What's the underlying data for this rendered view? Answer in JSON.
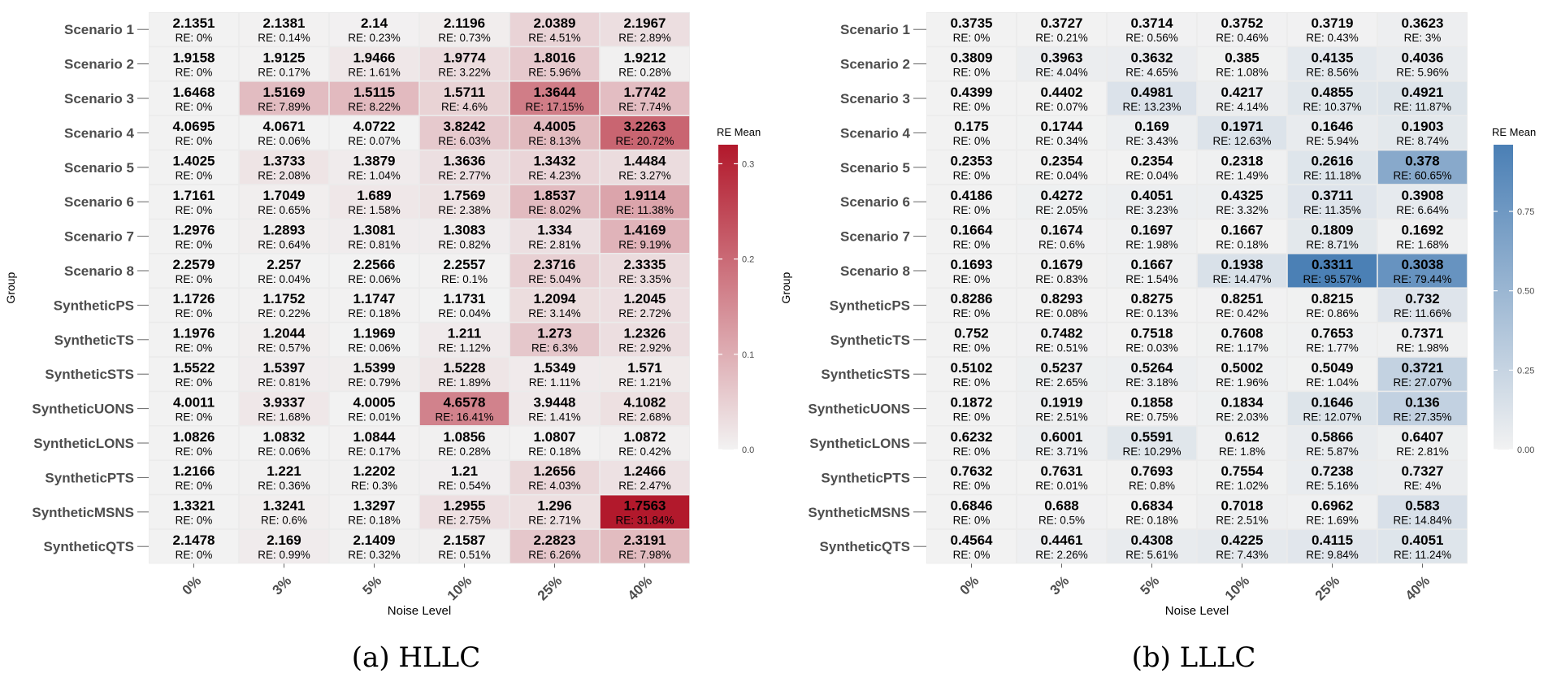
{
  "chart_data": [
    {
      "type": "heatmap",
      "caption": "(a) HLLC",
      "xlabel": "Noise Level",
      "ylabel": "Group",
      "x_categories": [
        "0%",
        "3%",
        "5%",
        "10%",
        "25%",
        "40%"
      ],
      "y_categories": [
        "Scenario 1",
        "Scenario 2",
        "Scenario 3",
        "Scenario 4",
        "Scenario 5",
        "Scenario 6",
        "Scenario 7",
        "Scenario 8",
        "SyntheticPS",
        "SyntheticTS",
        "SyntheticSTS",
        "SyntheticUONS",
        "SyntheticLONS",
        "SyntheticPTS",
        "SyntheticMSNS",
        "SyntheticQTS"
      ],
      "values": [
        [
          "2.1351",
          "2.1381",
          "2.14",
          "2.1196",
          "2.0389",
          "2.1967"
        ],
        [
          "1.9158",
          "1.9125",
          "1.9466",
          "1.9774",
          "1.8016",
          "1.9212"
        ],
        [
          "1.6468",
          "1.5169",
          "1.5115",
          "1.5711",
          "1.3644",
          "1.7742"
        ],
        [
          "4.0695",
          "4.0671",
          "4.0722",
          "3.8242",
          "4.4005",
          "3.2263"
        ],
        [
          "1.4025",
          "1.3733",
          "1.3879",
          "1.3636",
          "1.3432",
          "1.4484"
        ],
        [
          "1.7161",
          "1.7049",
          "1.689",
          "1.7569",
          "1.8537",
          "1.9114"
        ],
        [
          "1.2976",
          "1.2893",
          "1.3081",
          "1.3083",
          "1.334",
          "1.4169"
        ],
        [
          "2.2579",
          "2.257",
          "2.2566",
          "2.2557",
          "2.3716",
          "2.3335"
        ],
        [
          "1.1726",
          "1.1752",
          "1.1747",
          "1.1731",
          "1.2094",
          "1.2045"
        ],
        [
          "1.1976",
          "1.2044",
          "1.1969",
          "1.211",
          "1.273",
          "1.2326"
        ],
        [
          "1.5522",
          "1.5397",
          "1.5399",
          "1.5228",
          "1.5349",
          "1.571"
        ],
        [
          "4.0011",
          "3.9337",
          "4.0005",
          "4.6578",
          "3.9448",
          "4.1082"
        ],
        [
          "1.0826",
          "1.0832",
          "1.0844",
          "1.0856",
          "1.0807",
          "1.0872"
        ],
        [
          "1.2166",
          "1.221",
          "1.2202",
          "1.21",
          "1.2656",
          "1.2466"
        ],
        [
          "1.3321",
          "1.3241",
          "1.3297",
          "1.2955",
          "1.296",
          "1.7563"
        ],
        [
          "2.1478",
          "2.169",
          "2.1409",
          "2.1587",
          "2.2823",
          "2.3191"
        ]
      ],
      "re_labels": [
        [
          "RE: 0%",
          "RE: 0.14%",
          "RE: 0.23%",
          "RE: 0.73%",
          "RE: 4.51%",
          "RE: 2.89%"
        ],
        [
          "RE: 0%",
          "RE: 0.17%",
          "RE: 1.61%",
          "RE: 3.22%",
          "RE: 5.96%",
          "RE: 0.28%"
        ],
        [
          "RE: 0%",
          "RE: 7.89%",
          "RE: 8.22%",
          "RE: 4.6%",
          "RE: 17.15%",
          "RE: 7.74%"
        ],
        [
          "RE: 0%",
          "RE: 0.06%",
          "RE: 0.07%",
          "RE: 6.03%",
          "RE: 8.13%",
          "RE: 20.72%"
        ],
        [
          "RE: 0%",
          "RE: 2.08%",
          "RE: 1.04%",
          "RE: 2.77%",
          "RE: 4.23%",
          "RE: 3.27%"
        ],
        [
          "RE: 0%",
          "RE: 0.65%",
          "RE: 1.58%",
          "RE: 2.38%",
          "RE: 8.02%",
          "RE: 11.38%"
        ],
        [
          "RE: 0%",
          "RE: 0.64%",
          "RE: 0.81%",
          "RE: 0.82%",
          "RE: 2.81%",
          "RE: 9.19%"
        ],
        [
          "RE: 0%",
          "RE: 0.04%",
          "RE: 0.06%",
          "RE: 0.1%",
          "RE: 5.04%",
          "RE: 3.35%"
        ],
        [
          "RE: 0%",
          "RE: 0.22%",
          "RE: 0.18%",
          "RE: 0.04%",
          "RE: 3.14%",
          "RE: 2.72%"
        ],
        [
          "RE: 0%",
          "RE: 0.57%",
          "RE: 0.06%",
          "RE: 1.12%",
          "RE: 6.3%",
          "RE: 2.92%"
        ],
        [
          "RE: 0%",
          "RE: 0.81%",
          "RE: 0.79%",
          "RE: 1.89%",
          "RE: 1.11%",
          "RE: 1.21%"
        ],
        [
          "RE: 0%",
          "RE: 1.68%",
          "RE: 0.01%",
          "RE: 16.41%",
          "RE: 1.41%",
          "RE: 2.68%"
        ],
        [
          "RE: 0%",
          "RE: 0.06%",
          "RE: 0.17%",
          "RE: 0.28%",
          "RE: 0.18%",
          "RE: 0.42%"
        ],
        [
          "RE: 0%",
          "RE: 0.36%",
          "RE: 0.3%",
          "RE: 0.54%",
          "RE: 4.03%",
          "RE: 2.47%"
        ],
        [
          "RE: 0%",
          "RE: 0.6%",
          "RE: 0.18%",
          "RE: 2.75%",
          "RE: 2.71%",
          "RE: 31.84%"
        ],
        [
          "RE: 0%",
          "RE: 0.99%",
          "RE: 0.32%",
          "RE: 0.51%",
          "RE: 6.26%",
          "RE: 7.98%"
        ]
      ],
      "legend": {
        "title": "RE Mean",
        "range": [
          0,
          0.32
        ],
        "ticks": [
          "0.0",
          "0.1",
          "0.2",
          "0.3"
        ],
        "tick_values": [
          0,
          0.1,
          0.2,
          0.3
        ],
        "low_color": "#f2f2f2",
        "high_color": "#b2182b"
      }
    },
    {
      "type": "heatmap",
      "caption": "(b) LLLC",
      "xlabel": "Noise Level",
      "ylabel": "Group",
      "x_categories": [
        "0%",
        "3%",
        "5%",
        "10%",
        "25%",
        "40%"
      ],
      "y_categories": [
        "Scenario 1",
        "Scenario 2",
        "Scenario 3",
        "Scenario 4",
        "Scenario 5",
        "Scenario 6",
        "Scenario 7",
        "Scenario 8",
        "SyntheticPS",
        "SyntheticTS",
        "SyntheticSTS",
        "SyntheticUONS",
        "SyntheticLONS",
        "SyntheticPTS",
        "SyntheticMSNS",
        "SyntheticQTS"
      ],
      "values": [
        [
          "0.3735",
          "0.3727",
          "0.3714",
          "0.3752",
          "0.3719",
          "0.3623"
        ],
        [
          "0.3809",
          "0.3963",
          "0.3632",
          "0.385",
          "0.4135",
          "0.4036"
        ],
        [
          "0.4399",
          "0.4402",
          "0.4981",
          "0.4217",
          "0.4855",
          "0.4921"
        ],
        [
          "0.175",
          "0.1744",
          "0.169",
          "0.1971",
          "0.1646",
          "0.1903"
        ],
        [
          "0.2353",
          "0.2354",
          "0.2354",
          "0.2318",
          "0.2616",
          "0.378"
        ],
        [
          "0.4186",
          "0.4272",
          "0.4051",
          "0.4325",
          "0.3711",
          "0.3908"
        ],
        [
          "0.1664",
          "0.1674",
          "0.1697",
          "0.1667",
          "0.1809",
          "0.1692"
        ],
        [
          "0.1693",
          "0.1679",
          "0.1667",
          "0.1938",
          "0.3311",
          "0.3038"
        ],
        [
          "0.8286",
          "0.8293",
          "0.8275",
          "0.8251",
          "0.8215",
          "0.732"
        ],
        [
          "0.752",
          "0.7482",
          "0.7518",
          "0.7608",
          "0.7653",
          "0.7371"
        ],
        [
          "0.5102",
          "0.5237",
          "0.5264",
          "0.5002",
          "0.5049",
          "0.3721"
        ],
        [
          "0.1872",
          "0.1919",
          "0.1858",
          "0.1834",
          "0.1646",
          "0.136"
        ],
        [
          "0.6232",
          "0.6001",
          "0.5591",
          "0.612",
          "0.5866",
          "0.6407"
        ],
        [
          "0.7632",
          "0.7631",
          "0.7693",
          "0.7554",
          "0.7238",
          "0.7327"
        ],
        [
          "0.6846",
          "0.688",
          "0.6834",
          "0.7018",
          "0.6962",
          "0.583"
        ],
        [
          "0.4564",
          "0.4461",
          "0.4308",
          "0.4225",
          "0.4115",
          "0.4051"
        ]
      ],
      "re_labels": [
        [
          "RE: 0%",
          "RE: 0.21%",
          "RE: 0.56%",
          "RE: 0.46%",
          "RE: 0.43%",
          "RE: 3%"
        ],
        [
          "RE: 0%",
          "RE: 4.04%",
          "RE: 4.65%",
          "RE: 1.08%",
          "RE: 8.56%",
          "RE: 5.96%"
        ],
        [
          "RE: 0%",
          "RE: 0.07%",
          "RE: 13.23%",
          "RE: 4.14%",
          "RE: 10.37%",
          "RE: 11.87%"
        ],
        [
          "RE: 0%",
          "RE: 0.34%",
          "RE: 3.43%",
          "RE: 12.63%",
          "RE: 5.94%",
          "RE: 8.74%"
        ],
        [
          "RE: 0%",
          "RE: 0.04%",
          "RE: 0.04%",
          "RE: 1.49%",
          "RE: 11.18%",
          "RE: 60.65%"
        ],
        [
          "RE: 0%",
          "RE: 2.05%",
          "RE: 3.23%",
          "RE: 3.32%",
          "RE: 11.35%",
          "RE: 6.64%"
        ],
        [
          "RE: 0%",
          "RE: 0.6%",
          "RE: 1.98%",
          "RE: 0.18%",
          "RE: 8.71%",
          "RE: 1.68%"
        ],
        [
          "RE: 0%",
          "RE: 0.83%",
          "RE: 1.54%",
          "RE: 14.47%",
          "RE: 95.57%",
          "RE: 79.44%"
        ],
        [
          "RE: 0%",
          "RE: 0.08%",
          "RE: 0.13%",
          "RE: 0.42%",
          "RE: 0.86%",
          "RE: 11.66%"
        ],
        [
          "RE: 0%",
          "RE: 0.51%",
          "RE: 0.03%",
          "RE: 1.17%",
          "RE: 1.77%",
          "RE: 1.98%"
        ],
        [
          "RE: 0%",
          "RE: 2.65%",
          "RE: 3.18%",
          "RE: 1.96%",
          "RE: 1.04%",
          "RE: 27.07%"
        ],
        [
          "RE: 0%",
          "RE: 2.51%",
          "RE: 0.75%",
          "RE: 2.03%",
          "RE: 12.07%",
          "RE: 27.35%"
        ],
        [
          "RE: 0%",
          "RE: 3.71%",
          "RE: 10.29%",
          "RE: 1.8%",
          "RE: 5.87%",
          "RE: 2.81%"
        ],
        [
          "RE: 0%",
          "RE: 0.01%",
          "RE: 0.8%",
          "RE: 1.02%",
          "RE: 5.16%",
          "RE: 4%"
        ],
        [
          "RE: 0%",
          "RE: 0.5%",
          "RE: 0.18%",
          "RE: 2.51%",
          "RE: 1.69%",
          "RE: 14.84%"
        ],
        [
          "RE: 0%",
          "RE: 2.26%",
          "RE: 5.61%",
          "RE: 7.43%",
          "RE: 9.84%",
          "RE: 11.24%"
        ]
      ],
      "legend": {
        "title": "RE Mean",
        "range": [
          0,
          0.96
        ],
        "ticks": [
          "0.00",
          "0.25",
          "0.50",
          "0.75"
        ],
        "tick_values": [
          0,
          0.25,
          0.5,
          0.75
        ],
        "low_color": "#f2f2f2",
        "high_color": "#4a7fb5"
      }
    }
  ]
}
